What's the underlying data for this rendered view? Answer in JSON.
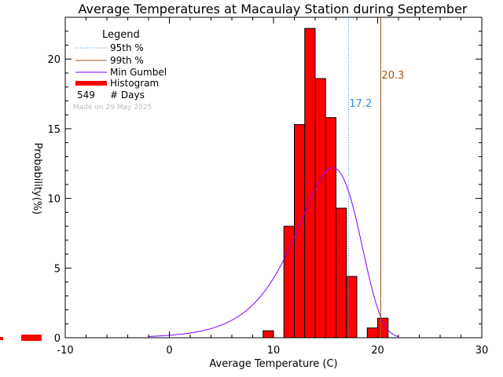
{
  "chart_data": {
    "type": "bar",
    "title": "Average Temperatures at Macaulay Station during September",
    "xlabel": "Average Temperature (C)",
    "ylabel_lines": [
      "Probability",
      "(%)"
    ],
    "xlim": [
      -10,
      30
    ],
    "ylim": [
      0,
      23
    ],
    "xticks": [
      -10,
      0,
      10,
      20,
      30
    ],
    "yticks": [
      0,
      5,
      10,
      15,
      20
    ],
    "histogram": {
      "name": "Histogram",
      "color": "#ff0000",
      "bins": [
        {
          "x0": 9,
          "x1": 10,
          "value": 0.5
        },
        {
          "x0": 10,
          "x1": 11,
          "value": 0.0
        },
        {
          "x0": 11,
          "x1": 12,
          "value": 8.0
        },
        {
          "x0": 12,
          "x1": 13,
          "value": 15.3
        },
        {
          "x0": 13,
          "x1": 14,
          "value": 22.2
        },
        {
          "x0": 14,
          "x1": 15,
          "value": 18.6
        },
        {
          "x0": 15,
          "x1": 16,
          "value": 15.8
        },
        {
          "x0": 16,
          "x1": 17,
          "value": 9.3
        },
        {
          "x0": 17,
          "x1": 18,
          "value": 4.4
        },
        {
          "x0": 18,
          "x1": 19,
          "value": 0.0
        },
        {
          "x0": 19,
          "x1": 20,
          "value": 0.7
        },
        {
          "x0": 20,
          "x1": 21,
          "value": 1.4
        }
      ]
    },
    "gumbel": {
      "name": "Min Gumbel",
      "color": "#8000ff",
      "mode": 15.7,
      "scale": 3.0,
      "peak": 12.2,
      "x_range": [
        -2,
        22
      ]
    },
    "p95": {
      "name": "95th %",
      "value": 17.2,
      "label": "17.2",
      "color": "#3a8fd0"
    },
    "p99": {
      "name": "99th %",
      "value": 20.3,
      "label": "20.3",
      "color": "#a0581c"
    },
    "legend": {
      "title": "Legend",
      "placement": "top-left",
      "days_value": "549",
      "days_label": "# Days"
    },
    "made_on": "Made on 29 May 2025"
  }
}
